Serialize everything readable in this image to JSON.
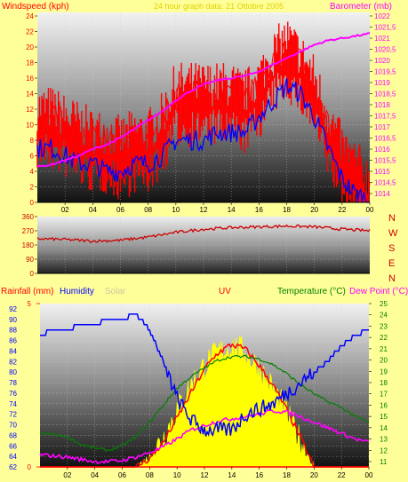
{
  "colors": {
    "page_bg": "#ffff99",
    "wind": "#ff0000",
    "gust_fill": "#ff0000",
    "wind_avg": "#0000ff",
    "barometer": "#ff00ff",
    "direction": "#cc0000",
    "rain": "#ff0000",
    "humidity": "#0000ff",
    "solar_fill": "#ffff00",
    "solar_label": "#c8c8a0",
    "uv": "#ff0000",
    "temperature": "#008000",
    "dew_point": "#ff00ff",
    "title": "#e0d000"
  },
  "charts": {
    "top": {
      "title": "24 hour graph data: 21 Ottobre 2005",
      "left_label": "Windspeed (kph)",
      "right_label": "Barometer (mb)"
    },
    "mid": {
      "compass": [
        "N",
        "W",
        "S",
        "E",
        "N"
      ]
    },
    "bottom": {
      "rain_label": "Rainfall (mm)",
      "humidity_label": "Humidity",
      "solar_label": "Solar",
      "uv_label": "UV",
      "temp_label": "Temperature (°C)",
      "dew_label": "Dew Point (°C)"
    }
  },
  "chart_data": [
    {
      "type": "line",
      "x_ticks": [
        "02",
        "04",
        "06",
        "08",
        "10",
        "12",
        "14",
        "16",
        "18",
        "20",
        "22",
        "00"
      ],
      "y_left": {
        "label": "Windspeed (kph)",
        "ticks": [
          "0",
          "2",
          "4",
          "6",
          "8",
          "10",
          "12",
          "14",
          "16",
          "18",
          "20",
          "22",
          "24"
        ],
        "lim": [
          0,
          24
        ]
      },
      "y_right": {
        "label": "Barometer (mb)",
        "ticks": [
          "1014",
          "1014,5",
          "1015",
          "1015,5",
          "1016",
          "1016,5",
          "1017",
          "1017,5",
          "1018",
          "1018,5",
          "1019",
          "1019,5",
          "1020",
          "1020,5",
          "1021",
          "1021,5",
          "1022"
        ],
        "lim": [
          1014,
          1022
        ]
      },
      "series": [
        {
          "axis": "left",
          "x": [
            0,
            1,
            2,
            3,
            4,
            5,
            6,
            7,
            8,
            9,
            10,
            11,
            12,
            13,
            14,
            15,
            16,
            17,
            18,
            19,
            20,
            21,
            22,
            23,
            24
          ],
          "values": [
            11,
            11,
            10,
            9,
            8,
            8,
            7,
            8,
            8,
            10,
            14,
            14,
            14,
            14,
            14,
            13,
            15,
            18,
            20,
            18,
            15,
            10,
            6,
            4,
            2
          ]
        },
        {
          "axis": "left",
          "x": [
            0,
            1,
            2,
            3,
            4,
            5,
            6,
            7,
            8,
            9,
            10,
            11,
            12,
            13,
            14,
            15,
            16,
            17,
            18,
            19,
            20,
            21,
            22,
            23,
            24
          ],
          "values": [
            7,
            7,
            6,
            5,
            5,
            4,
            4,
            5,
            5,
            6,
            8,
            8,
            8,
            9,
            9,
            9,
            11,
            13,
            15,
            14,
            11,
            7,
            3,
            1,
            0.5
          ]
        },
        {
          "axis": "right",
          "x": [
            0,
            1,
            2,
            3,
            4,
            5,
            6,
            7,
            8,
            9,
            10,
            11,
            12,
            13,
            14,
            15,
            16,
            17,
            18,
            19,
            20,
            21,
            22,
            23,
            24
          ],
          "values": [
            1015.2,
            1015.3,
            1015.5,
            1015.7,
            1016.0,
            1016.2,
            1016.5,
            1016.9,
            1017.3,
            1017.7,
            1018.2,
            1018.6,
            1018.9,
            1019.1,
            1019.2,
            1019.3,
            1019.5,
            1019.8,
            1020.1,
            1020.4,
            1020.7,
            1020.9,
            1021.0,
            1021.1,
            1021.2
          ]
        }
      ]
    },
    {
      "type": "line",
      "x_ticks": [
        "02",
        "04",
        "06",
        "08",
        "10",
        "12",
        "14",
        "16",
        "18",
        "20",
        "22",
        "00"
      ],
      "y_left": {
        "ticks": [
          "0",
          "90",
          "180",
          "270",
          "360"
        ],
        "lim": [
          0,
          360
        ]
      },
      "series": [
        {
          "axis": "left",
          "x": [
            0,
            2,
            4,
            6,
            8,
            10,
            12,
            14,
            16,
            18,
            20,
            22,
            24
          ],
          "values": [
            220,
            215,
            205,
            210,
            230,
            260,
            280,
            290,
            295,
            300,
            295,
            280,
            270
          ]
        }
      ]
    },
    {
      "type": "line",
      "x_ticks": [
        "02",
        "04",
        "06",
        "08",
        "10",
        "12",
        "14",
        "16",
        "18",
        "20",
        "22",
        "00"
      ],
      "y_humidity": {
        "label": "Humidity",
        "ticks": [
          "62",
          "64",
          "66",
          "68",
          "70",
          "72",
          "74",
          "76",
          "78",
          "80",
          "82",
          "84",
          "86",
          "88",
          "90",
          "92"
        ],
        "lim": [
          62,
          92
        ]
      },
      "y_rain": {
        "label": "Rainfall (mm)",
        "ticks": [
          "0",
          "5"
        ],
        "lim": [
          0,
          5
        ]
      },
      "y_temp": {
        "label": "Temperature (°C)",
        "ticks": [
          "11",
          "12",
          "13",
          "14",
          "15",
          "16",
          "17",
          "18",
          "19",
          "20",
          "21",
          "22",
          "23",
          "24",
          "25"
        ],
        "lim": [
          11,
          25
        ]
      },
      "series": [
        {
          "axis": "humidity",
          "x": [
            0,
            1,
            2,
            3,
            4,
            5,
            6,
            7,
            8,
            9,
            10,
            11,
            12,
            13,
            14,
            15,
            16,
            17,
            18,
            19,
            20,
            21,
            22,
            23,
            24
          ],
          "values": [
            87,
            88,
            88,
            89,
            89,
            90,
            90,
            91,
            88,
            82,
            75,
            71,
            69,
            69,
            69,
            72,
            73,
            74,
            76,
            78,
            80,
            82,
            85,
            87,
            88
          ]
        },
        {
          "axis": "temp",
          "x": [
            0,
            1,
            2,
            3,
            4,
            5,
            6,
            7,
            8,
            9,
            10,
            11,
            12,
            13,
            14,
            15,
            16,
            17,
            18,
            19,
            20,
            21,
            22,
            23,
            24
          ],
          "values": [
            13.5,
            13.4,
            13.2,
            12.5,
            12.2,
            12.0,
            12.4,
            13.2,
            14.5,
            16.0,
            17.5,
            18.5,
            19.3,
            20.0,
            20.3,
            20.3,
            20.1,
            19.6,
            18.8,
            17.8,
            17.0,
            16.3,
            15.8,
            15.0,
            14.5
          ]
        },
        {
          "axis": "temp",
          "x": [
            0,
            1,
            2,
            3,
            4,
            5,
            6,
            7,
            8,
            9,
            10,
            11,
            12,
            13,
            14,
            15,
            16,
            17,
            18,
            19,
            20,
            21,
            22,
            23,
            24
          ],
          "values": [
            11.6,
            11.5,
            11.4,
            11.2,
            11.0,
            11.0,
            11.1,
            11.4,
            11.8,
            12.3,
            13.0,
            13.8,
            14.2,
            14.6,
            14.8,
            15.0,
            15.2,
            15.5,
            15.4,
            15.0,
            14.5,
            14.0,
            13.5,
            13.0,
            12.7
          ]
        },
        {
          "axis": "uv",
          "x": [
            0,
            7,
            8,
            9,
            10,
            11,
            12,
            13,
            14,
            15,
            16,
            17,
            18,
            19,
            20,
            24
          ],
          "values": [
            0,
            0,
            0.05,
            0.15,
            0.3,
            0.45,
            0.6,
            0.7,
            0.75,
            0.72,
            0.62,
            0.5,
            0.35,
            0.18,
            0,
            0
          ]
        },
        {
          "axis": "solar",
          "x": [
            0,
            7,
            8,
            9,
            10,
            11,
            12,
            13,
            14,
            15,
            16,
            17,
            18,
            19,
            20,
            24
          ],
          "values": [
            0,
            0,
            0.06,
            0.18,
            0.35,
            0.5,
            0.62,
            0.7,
            0.74,
            0.7,
            0.6,
            0.48,
            0.33,
            0.16,
            0,
            0
          ]
        }
      ]
    }
  ]
}
